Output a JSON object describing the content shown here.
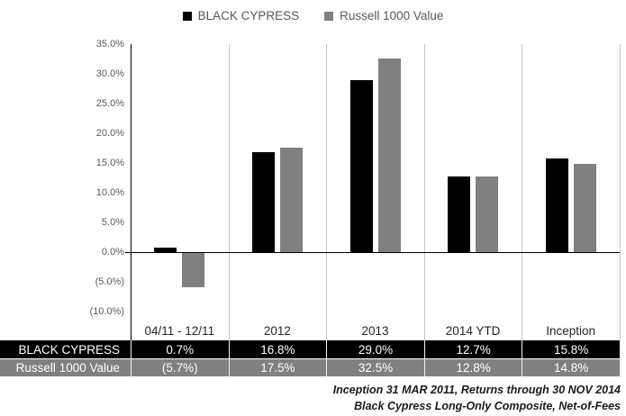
{
  "colors": {
    "series1": "#000000",
    "series2": "#808080",
    "gridline": "#c6c6c6",
    "axis": "#000000",
    "tick_label": "#595959",
    "table_header_text": "#262626",
    "table_text": "#ffffff"
  },
  "chart_data": {
    "type": "bar",
    "title": "",
    "xlabel": "",
    "ylabel": "",
    "categories": [
      "04/11 - 12/11",
      "2012",
      "2013",
      "2014 YTD",
      "Inception"
    ],
    "series": [
      {
        "name": "BLACK CYPRESS",
        "color": "#000000",
        "values": [
          0.7,
          16.8,
          29.0,
          12.7,
          15.8
        ]
      },
      {
        "name": "Russell 1000 Value",
        "color": "#808080",
        "values": [
          -5.7,
          17.5,
          32.5,
          12.8,
          14.8
        ]
      }
    ],
    "ylim": [
      -10,
      35
    ],
    "ytick_step": 5,
    "ytick_labels": [
      "35.0%",
      "30.0%",
      "25.0%",
      "20.0%",
      "15.0%",
      "10.0%",
      "5.0%",
      "0.0%",
      "(5.0%)",
      "(10.0%)"
    ],
    "grid": "vertical category separators only",
    "legend_position": "top center"
  },
  "table": {
    "header": [
      "",
      "04/11 - 12/11",
      "2012",
      "2013",
      "2014 YTD",
      "Inception"
    ],
    "rows": [
      {
        "label": "BLACK CYPRESS",
        "bg": "#000000",
        "values": [
          "0.7%",
          "16.8%",
          "29.0%",
          "12.7%",
          "15.8%"
        ]
      },
      {
        "label": "Russell 1000 Value",
        "bg": "#808080",
        "values": [
          "(5.7%)",
          "17.5%",
          "32.5%",
          "12.8%",
          "14.8%"
        ]
      }
    ]
  },
  "footnotes": [
    "Inception 31 MAR 2011, Returns through 30 NOV 2014",
    "Black Cypress Long-Only Composite, Net-of-Fees"
  ]
}
